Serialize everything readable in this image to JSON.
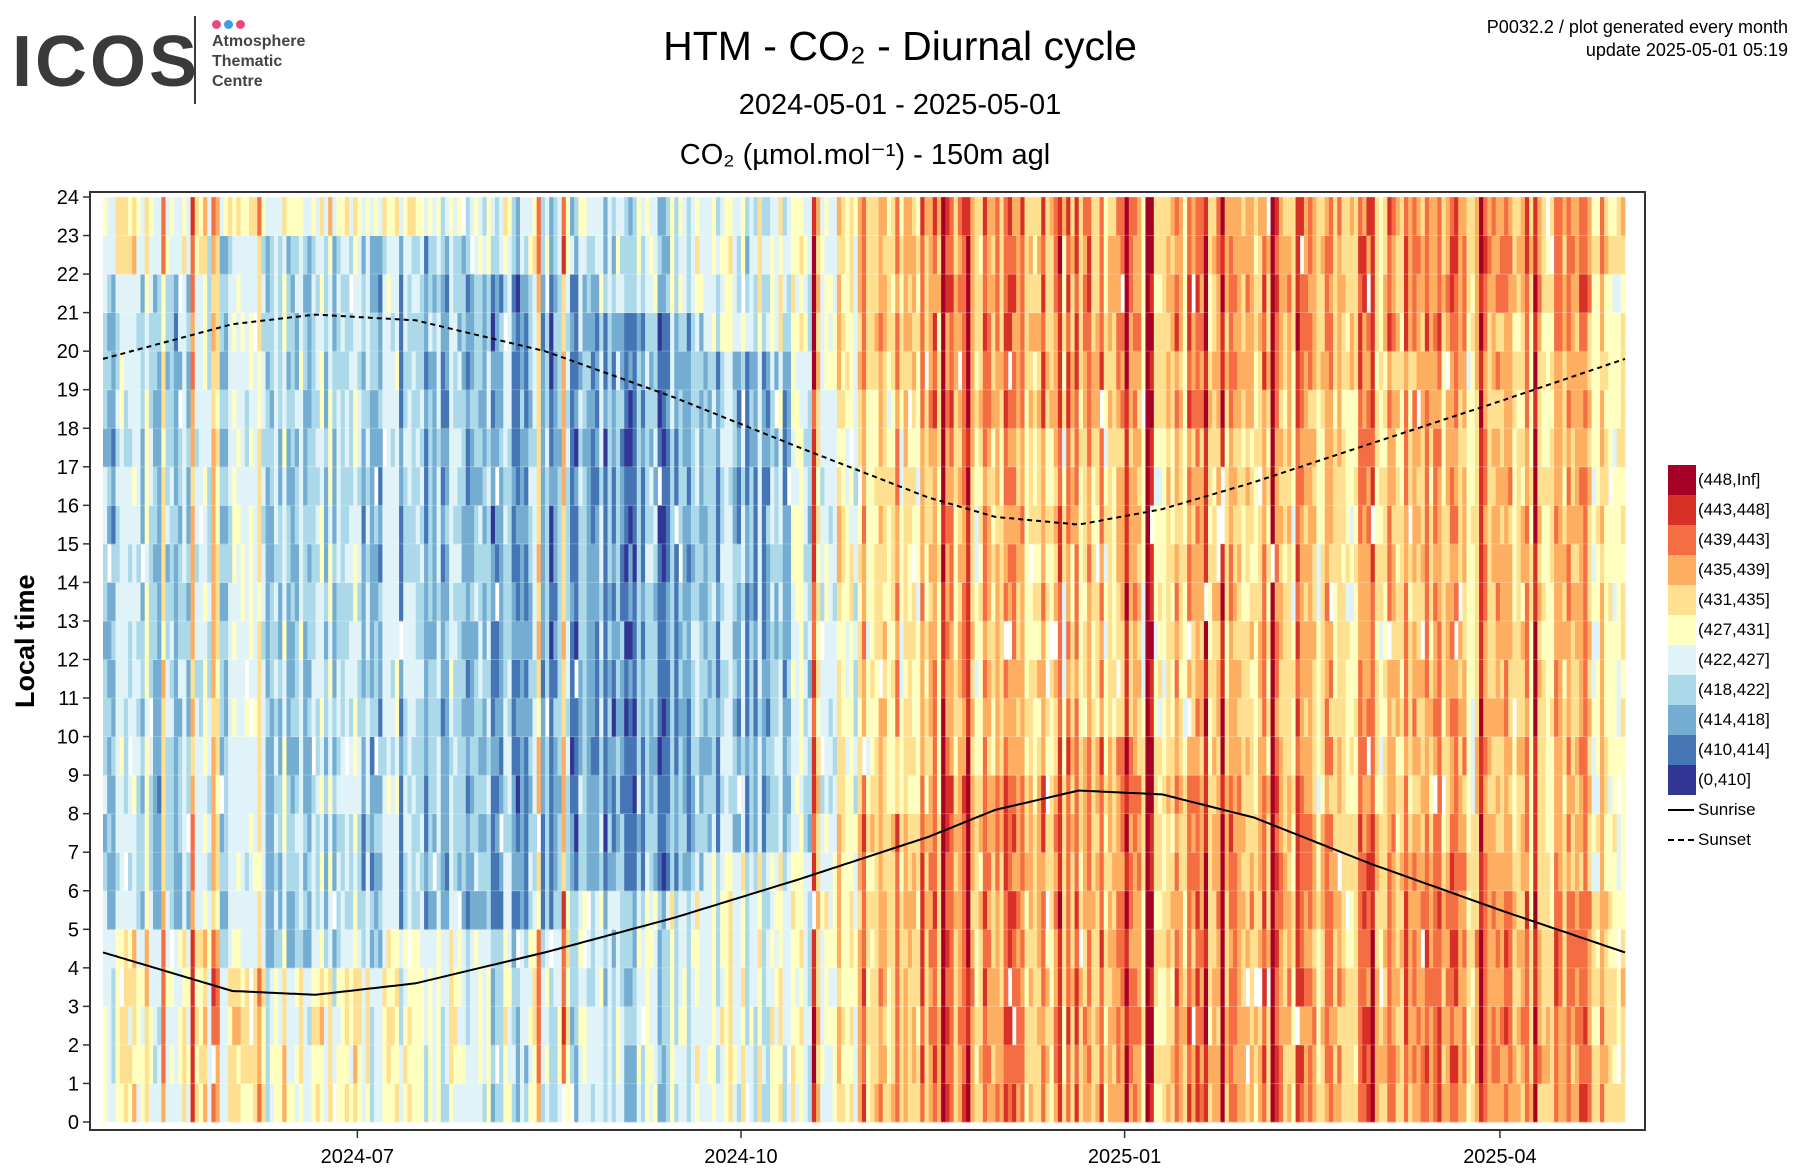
{
  "header": {
    "logo_word": "ICOS",
    "logo_sub": "Atmosphere\nThematic\nCentre",
    "logo_colors": [
      "#e84a7f",
      "#3aa0e0",
      "#e84a7f"
    ],
    "meta_line1": "P0032.2 / plot generated every month",
    "meta_line2": "update  2025-05-01 05:19"
  },
  "chart_data": {
    "type": "heatmap",
    "title": "HTM - CO₂ - Diurnal cycle",
    "subtitle": "2024-05-01 - 2025-05-01",
    "variable_label": "CO₂ (µmol.mol⁻¹) - 150m agl",
    "ylabel": "Local time",
    "xlabel": "",
    "x_range": [
      "2024-05-01",
      "2025-05-01"
    ],
    "x_ticks": [
      "2024-07",
      "2024-10",
      "2025-01",
      "2025-04"
    ],
    "y_range": [
      0,
      24
    ],
    "y_ticks": [
      0,
      1,
      2,
      3,
      4,
      5,
      6,
      7,
      8,
      9,
      10,
      11,
      12,
      13,
      14,
      15,
      16,
      17,
      18,
      19,
      20,
      21,
      22,
      23,
      24
    ],
    "grid": true,
    "legend_position": "right",
    "color_bins": [
      {
        "label": "(448,Inf]",
        "color": "#a50026"
      },
      {
        "label": "(443,448]",
        "color": "#d73027"
      },
      {
        "label": "(439,443]",
        "color": "#f46d43"
      },
      {
        "label": "(435,439]",
        "color": "#fdae61"
      },
      {
        "label": "(431,435]",
        "color": "#fee090"
      },
      {
        "label": "(427,431]",
        "color": "#ffffbf"
      },
      {
        "label": "(422,427]",
        "color": "#e0f3f8"
      },
      {
        "label": "(418,422]",
        "color": "#abd9e9"
      },
      {
        "label": "(414,418]",
        "color": "#74add1"
      },
      {
        "label": "(410,414]",
        "color": "#4575b4"
      },
      {
        "label": "(0,410]",
        "color": "#313695"
      }
    ],
    "lines": [
      {
        "name": "Sunrise",
        "style": "solid",
        "x": [
          "2024-05-01",
          "2024-06-01",
          "2024-06-21",
          "2024-07-15",
          "2024-08-15",
          "2024-09-15",
          "2024-10-15",
          "2024-11-15",
          "2024-12-01",
          "2024-12-21",
          "2025-01-10",
          "2025-02-01",
          "2025-03-01",
          "2025-04-01",
          "2025-05-01"
        ],
        "y": [
          4.4,
          3.4,
          3.3,
          3.6,
          4.4,
          5.3,
          6.3,
          7.4,
          8.1,
          8.6,
          8.5,
          7.9,
          6.7,
          5.5,
          4.4
        ]
      },
      {
        "name": "Sunset",
        "style": "dashed",
        "x": [
          "2024-05-01",
          "2024-06-01",
          "2024-06-21",
          "2024-07-15",
          "2024-08-15",
          "2024-09-15",
          "2024-10-15",
          "2024-11-15",
          "2024-12-01",
          "2024-12-21",
          "2025-01-10",
          "2025-02-01",
          "2025-03-01",
          "2025-04-01",
          "2025-05-01"
        ],
        "y": [
          19.8,
          20.7,
          20.95,
          20.8,
          20.0,
          18.8,
          17.5,
          16.2,
          15.7,
          15.5,
          15.9,
          16.6,
          17.6,
          18.7,
          19.8
        ]
      }
    ]
  }
}
